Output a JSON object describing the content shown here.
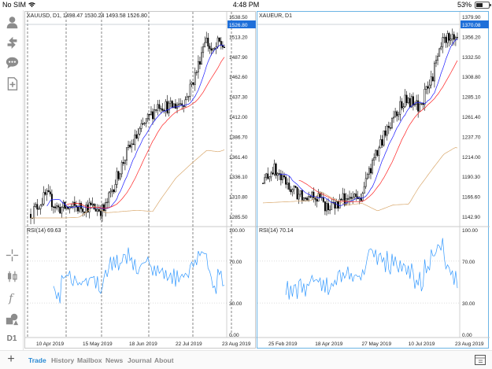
{
  "status_bar": {
    "carrier": "No SIM",
    "wifi_icon": "wifi-icon",
    "time": "4:48 PM",
    "battery_text": "53%",
    "battery_level": 0.53
  },
  "sidebar": {
    "items": [
      {
        "name": "account-icon",
        "label": ""
      },
      {
        "name": "trade-arrows-icon",
        "label": ""
      },
      {
        "name": "chat-icon",
        "label": ""
      },
      {
        "name": "new-order-icon",
        "label": ""
      },
      {
        "name": "crosshair-icon",
        "label": ""
      },
      {
        "name": "candlestick-icon",
        "label": ""
      },
      {
        "name": "function-icon",
        "label": ""
      },
      {
        "name": "shapes-icon",
        "label": ""
      },
      {
        "name": "timeframe",
        "label": "D1"
      }
    ]
  },
  "colors": {
    "accent": "#2a8ad4",
    "active_border": "#6cb4e4",
    "ma_fast": "#1a1aff",
    "ma_mid": "#ff2222",
    "ma_slow": "#d9a86c",
    "rsi_line": "#3399ff",
    "price_tag_bg": "#1e6fd9"
  },
  "charts": [
    {
      "info": "XAUUSD, D1, 1498.47 1530.24 1493.58 1526.80",
      "price_labels": [
        "1538.50",
        "1513.20",
        "1487.90",
        "1462.60",
        "1437.30",
        "1412.00",
        "1386.70",
        "1361.40",
        "1336.10",
        "1310.80",
        "1285.50"
      ],
      "price_tag": "1526.80",
      "rsi_label": "RSI(14) 69.63",
      "rsi_scale": [
        "100.00",
        "70.00",
        "30.00",
        "0.00"
      ],
      "dates": [
        "10 Apr 2019",
        "15 May 2019",
        "18 Jun 2019",
        "22 Jul 2019",
        "23 Aug 2019"
      ]
    },
    {
      "info": "XAUEUR, D1",
      "price_labels": [
        "1379.90",
        "1356.20",
        "1332.50",
        "1308.80",
        "1285.10",
        "1261.40",
        "1237.70",
        "1214.00",
        "1190.30",
        "1166.60",
        "1142.90"
      ],
      "price_tag": "1370.08",
      "rsi_label": "RSI(14) 70.14",
      "rsi_scale": [
        "100.00",
        "70.00",
        "30.00",
        "0.00"
      ],
      "dates": [
        "25 Feb 2019",
        "18 Apr 2019",
        "27 May 2019",
        "10 Jul 2019",
        "23 Aug 2019"
      ]
    }
  ],
  "tabs": [
    {
      "label": "Trade",
      "active": true
    },
    {
      "label": "History",
      "active": false
    },
    {
      "label": "Mailbox",
      "active": false
    },
    {
      "label": "News",
      "active": false
    },
    {
      "label": "Journal",
      "active": false
    },
    {
      "label": "About",
      "active": false
    }
  ]
}
